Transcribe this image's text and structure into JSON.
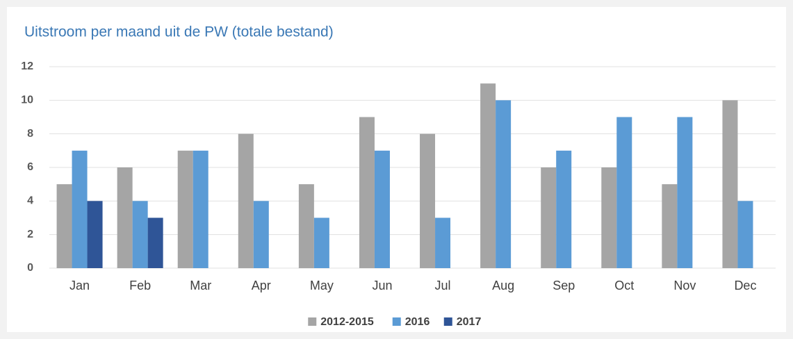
{
  "chart_data": {
    "type": "bar",
    "title": "Uitstroom per maand uit de PW (totale bestand)",
    "categories": [
      "Jan",
      "Feb",
      "Mar",
      "Apr",
      "May",
      "Jun",
      "Jul",
      "Aug",
      "Sep",
      "Oct",
      "Nov",
      "Dec"
    ],
    "series": [
      {
        "name": "2012-2015",
        "color": "#a5a5a5",
        "values": [
          5,
          6,
          7,
          8,
          5,
          9,
          8,
          11,
          6,
          6,
          5,
          10
        ]
      },
      {
        "name": "2016",
        "color": "#5b9bd5",
        "values": [
          7,
          4,
          7,
          4,
          3,
          7,
          3,
          10,
          7,
          9,
          9,
          4
        ]
      },
      {
        "name": "2017",
        "color": "#2f5597",
        "values": [
          4,
          3,
          null,
          null,
          null,
          null,
          null,
          null,
          null,
          null,
          null,
          null
        ]
      }
    ],
    "ylim": [
      0,
      12
    ],
    "yticks": [
      0,
      2,
      4,
      6,
      8,
      10,
      12
    ],
    "grid": true,
    "legend": "bottom"
  }
}
